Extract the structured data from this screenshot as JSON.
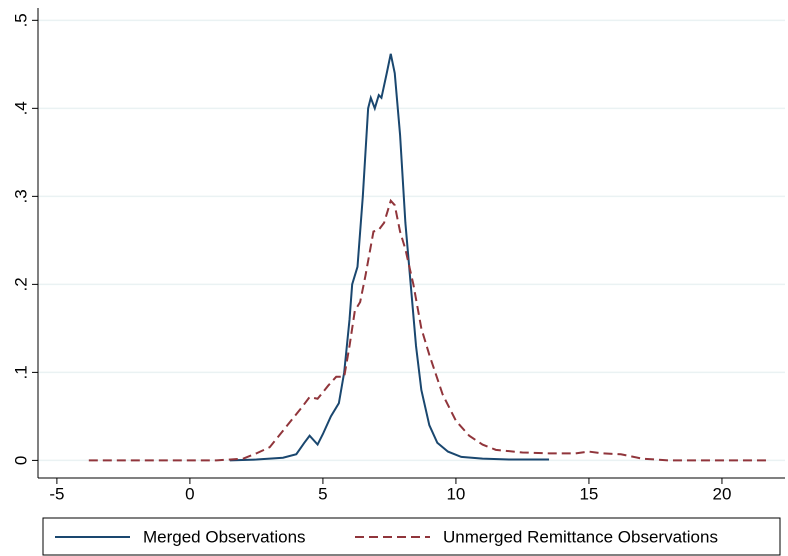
{
  "chart_data": {
    "type": "line",
    "xlim": [
      -5.71,
      22.37
    ],
    "ylim": [
      -0.02,
      0.514
    ],
    "xticks": [
      -5,
      0,
      5,
      10,
      15,
      20
    ],
    "yticks": [
      0,
      {
        "value": 0.1,
        "label": ".1"
      },
      {
        "value": 0.2,
        "label": ".2"
      },
      {
        "value": 0.3,
        "label": ".3"
      },
      {
        "value": 0.4,
        "label": ".4"
      },
      {
        "value": 0.5,
        "label": ".5"
      }
    ],
    "grid": true,
    "legend": "bottom",
    "series": [
      {
        "name": "Merged Observations",
        "color": "#1a476f",
        "dash": "solid",
        "x": [
          1.5,
          2.5,
          3.5,
          4.0,
          4.3,
          4.5,
          4.8,
          5.0,
          5.3,
          5.6,
          5.8,
          6.0,
          6.1,
          6.3,
          6.5,
          6.7,
          6.8,
          6.95,
          7.1,
          7.2,
          7.4,
          7.55,
          7.7,
          7.9,
          8.1,
          8.3,
          8.5,
          8.7,
          9.0,
          9.3,
          9.7,
          10.2,
          11,
          12,
          13.5
        ],
        "values": [
          0,
          0.001,
          0.003,
          0.007,
          0.02,
          0.028,
          0.018,
          0.03,
          0.05,
          0.065,
          0.1,
          0.16,
          0.2,
          0.22,
          0.3,
          0.4,
          0.412,
          0.4,
          0.415,
          0.412,
          0.44,
          0.462,
          0.44,
          0.37,
          0.27,
          0.2,
          0.13,
          0.08,
          0.04,
          0.02,
          0.01,
          0.004,
          0.002,
          0.001,
          0.001
        ]
      },
      {
        "name": "Unmerged Remittance Observations",
        "color": "#90353b",
        "dash": "dashed",
        "x": [
          -3.8,
          1,
          2,
          2.5,
          3.0,
          3.4,
          3.8,
          4.2,
          4.5,
          4.8,
          5.2,
          5.5,
          5.8,
          6.0,
          6.2,
          6.4,
          6.6,
          6.9,
          7.1,
          7.3,
          7.55,
          7.7,
          7.9,
          8.1,
          8.4,
          8.7,
          9.0,
          9.5,
          10,
          10.5,
          11,
          11.5,
          12.5,
          13.5,
          14.5,
          15,
          15.5,
          16.2,
          17,
          17.5,
          18,
          21.7
        ],
        "values": [
          0,
          0,
          0.002,
          0.008,
          0.015,
          0.03,
          0.045,
          0.06,
          0.072,
          0.07,
          0.085,
          0.095,
          0.095,
          0.13,
          0.17,
          0.18,
          0.21,
          0.26,
          0.262,
          0.27,
          0.295,
          0.29,
          0.26,
          0.24,
          0.2,
          0.15,
          0.12,
          0.075,
          0.045,
          0.028,
          0.018,
          0.012,
          0.009,
          0.008,
          0.008,
          0.01,
          0.008,
          0.007,
          0.002,
          0.001,
          0,
          0
        ]
      }
    ]
  }
}
